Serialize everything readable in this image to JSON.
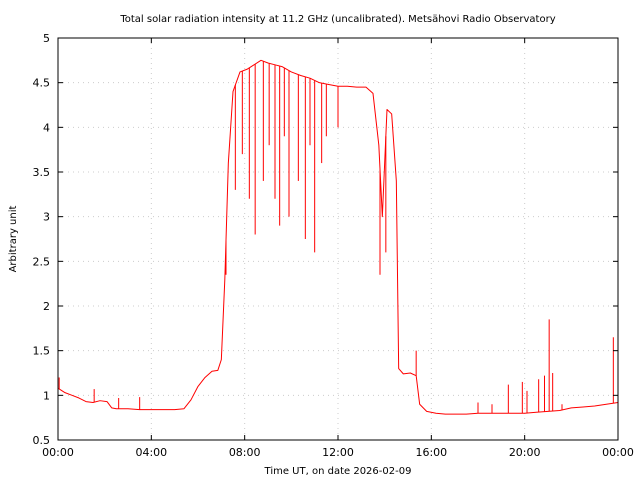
{
  "chart_data": {
    "type": "line",
    "title": "Total solar radiation intensity at 11.2 GHz (uncalibrated). Metsähovi Radio Observatory",
    "xlabel": "Time UT, on date 2026-02-09",
    "ylabel": "Arbitrary unit",
    "xlim": [
      0,
      24
    ],
    "ylim": [
      0.5,
      5
    ],
    "x_ticks": [
      {
        "value": 0,
        "label": "00:00"
      },
      {
        "value": 4,
        "label": "04:00"
      },
      {
        "value": 8,
        "label": "08:00"
      },
      {
        "value": 12,
        "label": "12:00"
      },
      {
        "value": 16,
        "label": "16:00"
      },
      {
        "value": 20,
        "label": "20:00"
      },
      {
        "value": 24,
        "label": "00:00"
      }
    ],
    "y_ticks": [
      {
        "value": 0.5,
        "label": "0.5"
      },
      {
        "value": 1,
        "label": "1"
      },
      {
        "value": 1.5,
        "label": "1.5"
      },
      {
        "value": 2,
        "label": "2"
      },
      {
        "value": 2.5,
        "label": "2.5"
      },
      {
        "value": 3,
        "label": "3"
      },
      {
        "value": 3.5,
        "label": "3.5"
      },
      {
        "value": 4,
        "label": "4"
      },
      {
        "value": 4.5,
        "label": "4.5"
      },
      {
        "value": 5,
        "label": "5"
      }
    ],
    "grid": true,
    "legend": "none",
    "series_color": "#ff0000",
    "series": [
      {
        "x": [
          0,
          0.3,
          0.6,
          0.9,
          1.2,
          1.5,
          1.8,
          2.1,
          2.3,
          2.5,
          3.0,
          3.5,
          4.0,
          4.5,
          5.0,
          5.4,
          5.7,
          6.0,
          6.3,
          6.6,
          6.85,
          7.0,
          7.15,
          7.3,
          7.5,
          7.8,
          8.1,
          8.4,
          8.7,
          9.0,
          9.3,
          9.6,
          10.0,
          10.4,
          10.8,
          11.2,
          11.6,
          12.0,
          12.4,
          12.8,
          13.2,
          13.5,
          13.75,
          13.9,
          14.1,
          14.3,
          14.5,
          14.6,
          14.8,
          15.1,
          15.35,
          15.5,
          15.8,
          16.2,
          16.6,
          17.0,
          17.5,
          18.0,
          18.5,
          19.0,
          19.5,
          20.0,
          20.5,
          21.0,
          21.5,
          22.0,
          22.5,
          23.0,
          23.5,
          24.0
        ],
        "y": [
          1.08,
          1.03,
          1.0,
          0.97,
          0.93,
          0.92,
          0.94,
          0.93,
          0.86,
          0.85,
          0.85,
          0.84,
          0.84,
          0.84,
          0.84,
          0.85,
          0.95,
          1.1,
          1.2,
          1.27,
          1.28,
          1.4,
          2.3,
          3.6,
          4.4,
          4.62,
          4.65,
          4.7,
          4.75,
          4.72,
          4.7,
          4.68,
          4.62,
          4.58,
          4.55,
          4.5,
          4.48,
          4.46,
          4.46,
          4.45,
          4.45,
          4.38,
          3.8,
          3.0,
          4.2,
          4.15,
          3.4,
          1.3,
          1.24,
          1.25,
          1.22,
          0.9,
          0.82,
          0.8,
          0.79,
          0.79,
          0.79,
          0.8,
          0.8,
          0.8,
          0.8,
          0.8,
          0.81,
          0.82,
          0.83,
          0.86,
          0.87,
          0.88,
          0.9,
          0.92
        ]
      }
    ],
    "dips": [
      {
        "x": 7.2,
        "y": 2.35
      },
      {
        "x": 7.6,
        "y": 3.3
      },
      {
        "x": 7.9,
        "y": 3.7
      },
      {
        "x": 8.2,
        "y": 3.2
      },
      {
        "x": 8.45,
        "y": 2.8
      },
      {
        "x": 8.8,
        "y": 3.4
      },
      {
        "x": 9.05,
        "y": 3.8
      },
      {
        "x": 9.3,
        "y": 3.2
      },
      {
        "x": 9.5,
        "y": 2.9
      },
      {
        "x": 9.7,
        "y": 3.9
      },
      {
        "x": 9.9,
        "y": 3.0
      },
      {
        "x": 10.3,
        "y": 3.4
      },
      {
        "x": 10.6,
        "y": 2.75
      },
      {
        "x": 10.8,
        "y": 3.8
      },
      {
        "x": 11.0,
        "y": 2.6
      },
      {
        "x": 11.3,
        "y": 3.6
      },
      {
        "x": 11.5,
        "y": 3.9
      },
      {
        "x": 12.0,
        "y": 4.0
      },
      {
        "x": 13.8,
        "y": 2.35
      },
      {
        "x": 14.05,
        "y": 2.6
      }
    ],
    "spikes": [
      {
        "x": 0.05,
        "y": 1.2
      },
      {
        "x": 1.55,
        "y": 1.07
      },
      {
        "x": 2.6,
        "y": 0.97
      },
      {
        "x": 3.5,
        "y": 0.98
      },
      {
        "x": 15.35,
        "y": 1.5
      },
      {
        "x": 18.0,
        "y": 0.92
      },
      {
        "x": 18.6,
        "y": 0.9
      },
      {
        "x": 19.3,
        "y": 1.12
      },
      {
        "x": 19.9,
        "y": 1.15
      },
      {
        "x": 20.1,
        "y": 1.05
      },
      {
        "x": 20.6,
        "y": 1.18
      },
      {
        "x": 20.85,
        "y": 1.22
      },
      {
        "x": 21.05,
        "y": 1.85
      },
      {
        "x": 21.2,
        "y": 1.25
      },
      {
        "x": 21.6,
        "y": 0.9
      },
      {
        "x": 23.8,
        "y": 1.65
      }
    ]
  }
}
